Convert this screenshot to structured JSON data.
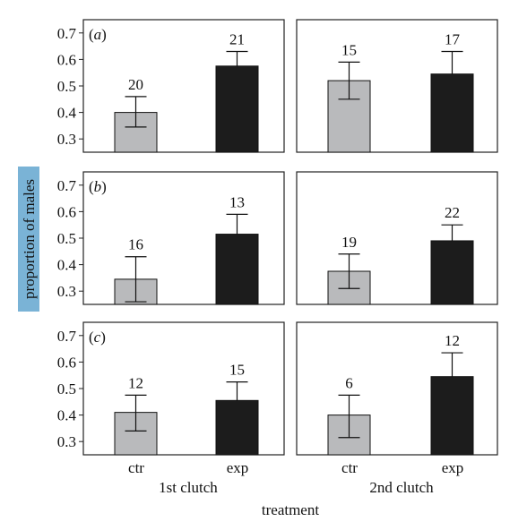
{
  "chart_data": [
    {
      "type": "bar",
      "panel_label": "(a)",
      "clutch": "1st clutch",
      "categories": [
        "ctr",
        "exp"
      ],
      "values": [
        0.4,
        0.575
      ],
      "error_upper": [
        0.46,
        0.63
      ],
      "error_lower": [
        0.345,
        null
      ],
      "n_labels": [
        "20",
        "21"
      ],
      "ylim": [
        0.25,
        0.75
      ],
      "yticks": [
        "0.7",
        "0.6",
        "0.5",
        "0.4",
        "0.3"
      ]
    },
    {
      "type": "bar",
      "panel_label": "",
      "clutch": "2nd clutch",
      "categories": [
        "ctr",
        "exp"
      ],
      "values": [
        0.52,
        0.545
      ],
      "error_upper": [
        0.59,
        0.63
      ],
      "error_lower": [
        0.45,
        null
      ],
      "n_labels": [
        "15",
        "17"
      ],
      "ylim": [
        0.25,
        0.75
      ],
      "yticks": []
    },
    {
      "type": "bar",
      "panel_label": "(b)",
      "clutch": "1st clutch",
      "categories": [
        "ctr",
        "exp"
      ],
      "values": [
        0.345,
        0.515
      ],
      "error_upper": [
        0.43,
        0.59
      ],
      "error_lower": [
        0.26,
        null
      ],
      "n_labels": [
        "16",
        "13"
      ],
      "ylim": [
        0.25,
        0.75
      ],
      "yticks": [
        "0.7",
        "0.6",
        "0.5",
        "0.4",
        "0.3"
      ]
    },
    {
      "type": "bar",
      "panel_label": "",
      "clutch": "2nd clutch",
      "categories": [
        "ctr",
        "exp"
      ],
      "values": [
        0.375,
        0.49
      ],
      "error_upper": [
        0.44,
        0.55
      ],
      "error_lower": [
        0.31,
        null
      ],
      "n_labels": [
        "19",
        "22"
      ],
      "ylim": [
        0.25,
        0.75
      ],
      "yticks": []
    },
    {
      "type": "bar",
      "panel_label": "(c)",
      "clutch": "1st clutch",
      "categories": [
        "ctr",
        "exp"
      ],
      "values": [
        0.41,
        0.455
      ],
      "error_upper": [
        0.475,
        0.525
      ],
      "error_lower": [
        0.34,
        null
      ],
      "n_labels": [
        "12",
        "15"
      ],
      "ylim": [
        0.25,
        0.75
      ],
      "yticks": [
        "0.7",
        "0.6",
        "0.5",
        "0.4",
        "0.3"
      ]
    },
    {
      "type": "bar",
      "panel_label": "",
      "clutch": "2nd clutch",
      "categories": [
        "ctr",
        "exp"
      ],
      "values": [
        0.4,
        0.545
      ],
      "error_upper": [
        0.475,
        0.635
      ],
      "error_lower": [
        0.315,
        null
      ],
      "n_labels": [
        "6",
        "12"
      ],
      "ylim": [
        0.25,
        0.75
      ],
      "yticks": []
    }
  ],
  "labels": {
    "ylabel": "proportion of males",
    "xlabel": "treatment",
    "clutch_1": "1st clutch",
    "clutch_2": "2nd clutch",
    "cat_ctr": "ctr",
    "cat_exp": "exp"
  },
  "colors": {
    "ctr_fill": "#b9babc",
    "exp_fill": "#1c1c1c",
    "ylabel_bg": "#7ab3d6"
  }
}
